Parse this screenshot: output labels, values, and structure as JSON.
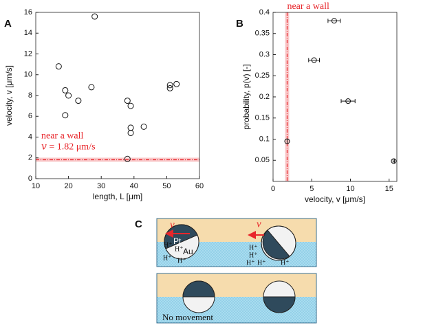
{
  "chart_data": [
    {
      "type": "scatter",
      "panel": "A",
      "x_label": "length, L [μm]",
      "y_label": "velocity, v [μm/s]",
      "x": [
        17,
        19,
        20,
        19,
        23,
        27,
        28,
        38,
        39,
        39,
        39,
        38,
        43,
        51,
        51,
        53
      ],
      "values": [
        10.8,
        8.5,
        8.0,
        6.1,
        7.5,
        8.8,
        15.6,
        7.5,
        7.0,
        4.9,
        4.4,
        1.9,
        5.0,
        9.0,
        8.7,
        9.1
      ],
      "color": "#111111",
      "xlim": [
        10,
        60
      ],
      "xticks": [
        10,
        20,
        30,
        40,
        50,
        60
      ],
      "ylim": [
        0,
        16
      ],
      "yticks": [
        0,
        2,
        4,
        6,
        8,
        10,
        12,
        14,
        16
      ],
      "reference_line": {
        "value": 1.82,
        "label": "near a wall",
        "annotation": "𝑣 = 1.82 μm/s",
        "color": "#e8262b"
      }
    },
    {
      "type": "errorbar",
      "panel": "B",
      "x_label": "velocity, v [μm/s]",
      "y_label": "probability, p(v) [-]",
      "x": [
        1.82,
        5.3,
        7.9,
        9.7,
        15.6
      ],
      "values": [
        0.095,
        0.287,
        0.38,
        0.19,
        0.048
      ],
      "x_error": [
        0,
        0.7,
        0.8,
        0.9,
        0.1
      ],
      "color": "#111111",
      "xlim": [
        0,
        16
      ],
      "xticks": [
        0,
        5,
        10,
        15
      ],
      "ylim": [
        0,
        0.4
      ],
      "yticks": [
        0.05,
        0.1,
        0.15,
        0.2,
        0.25,
        0.3,
        0.35,
        0.4
      ],
      "reference_line": {
        "value": 1.82,
        "label": "near a wall",
        "color": "#e8262b"
      }
    }
  ],
  "diagram": {
    "panel": "C",
    "velocity_symbol": [
      "v",
      "v"
    ],
    "metals": [
      "Pt",
      "Au"
    ],
    "ions": [
      "H⁺",
      "H⁺",
      "H⁺",
      "H⁺",
      "H⁺",
      "H⁺",
      "H⁺",
      "H⁺",
      "H⁺"
    ],
    "caption": "No movement"
  }
}
